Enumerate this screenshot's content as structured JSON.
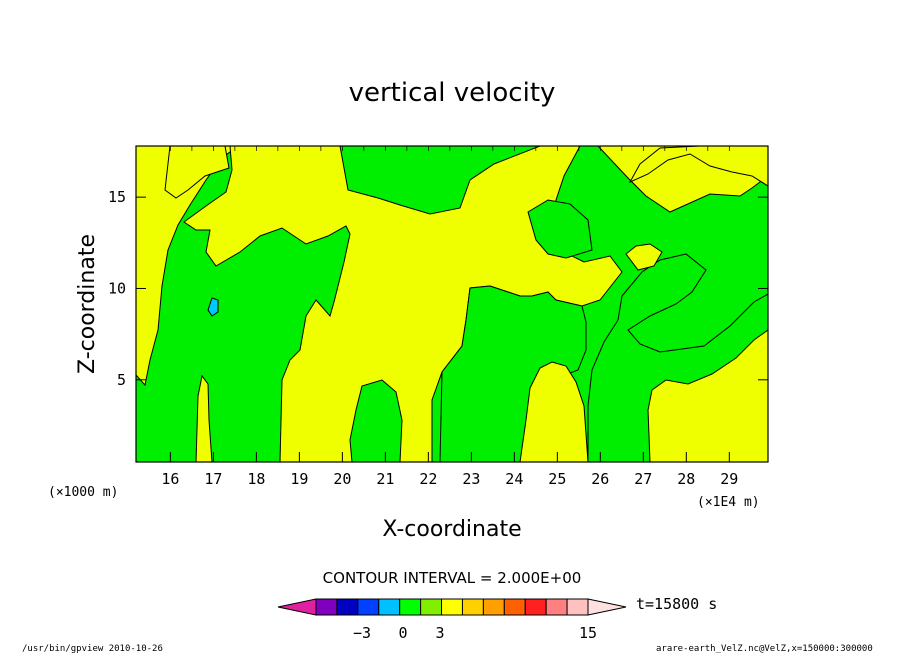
{
  "chart_data": {
    "type": "heatmap",
    "title": "vertical velocity",
    "xlabel": "X-coordinate",
    "ylabel": "Z-coordinate",
    "xlim": [
      15.2,
      29.9
    ],
    "ylim": [
      0.5,
      17.8
    ],
    "x_ticks": [
      {
        "value": 16,
        "label": "16"
      },
      {
        "value": 17,
        "label": "17"
      },
      {
        "value": 18,
        "label": "18"
      },
      {
        "value": 19,
        "label": "19"
      },
      {
        "value": 20,
        "label": "20"
      },
      {
        "value": 21,
        "label": "21"
      },
      {
        "value": 22,
        "label": "22"
      },
      {
        "value": 23,
        "label": "23"
      },
      {
        "value": 24,
        "label": "24"
      },
      {
        "value": 25,
        "label": "25"
      },
      {
        "value": 26,
        "label": "26"
      },
      {
        "value": 27,
        "label": "27"
      },
      {
        "value": 28,
        "label": "28"
      },
      {
        "value": 29,
        "label": "29"
      }
    ],
    "y_ticks": [
      {
        "value": 5,
        "label": "5"
      },
      {
        "value": 10,
        "label": "10"
      },
      {
        "value": 15,
        "label": "15"
      }
    ],
    "x_unit_left": "(×1000 m)",
    "x_unit_right": "(×1E4 m)",
    "contour_interval": "CONTOUR INTERVAL = 2.000E+00",
    "time_label": "t=15800 s",
    "colorbar": {
      "levels": [
        -6,
        -4,
        -3,
        -2,
        -1,
        0,
        1,
        2,
        3,
        4,
        6,
        8,
        10,
        12
      ],
      "colors": [
        "#e020a0",
        "#8000c0",
        "#0000c0",
        "#0040ff",
        "#00c0ff",
        "#00ff00",
        "#80f000",
        "#ffff00",
        "#ffd000",
        "#ffa000",
        "#ff6000",
        "#ff2020",
        "#ff8080",
        "#ffc0c0",
        "#ffe0e0"
      ],
      "tick_labels": [
        {
          "value": -3,
          "label": "−3"
        },
        {
          "value": 0,
          "label": "0"
        },
        {
          "value": 3,
          "label": "3"
        },
        {
          "value": 15,
          "label": "15"
        }
      ]
    },
    "fill_colors": {
      "positive": "#f0ff00",
      "negative": "#00ee00",
      "strong_negative": "#00c8ff"
    }
  },
  "footer": {
    "left": "/usr/bin/gpview  2010-10-26",
    "right": "arare-earth_VelZ.nc@VelZ,x=150000:300000"
  }
}
